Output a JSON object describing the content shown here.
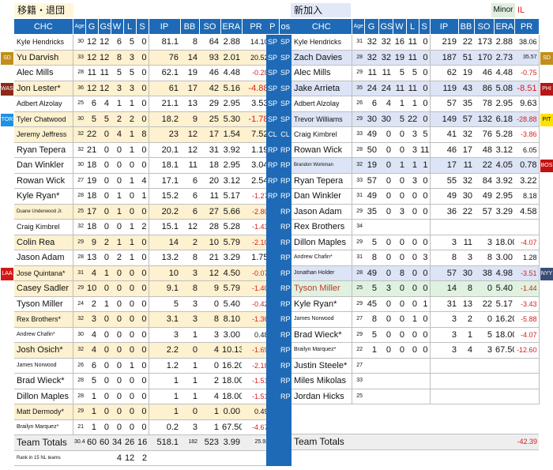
{
  "header": {
    "left_label": "移籍・退団",
    "right_label": "新加入",
    "minor_label": "Minor",
    "il_label": "IL"
  },
  "columns_left": [
    "CHC",
    "Age",
    "G",
    "GS",
    "W",
    "L",
    "S",
    "IP",
    "BB",
    "SO",
    "ERA",
    "PR"
  ],
  "columns_mid": [
    "P",
    "os"
  ],
  "columns_right": [
    "CHC",
    "Age",
    "G",
    "GS",
    "W",
    "L",
    "S",
    "IP",
    "BB",
    "SO",
    "ERA",
    "PR"
  ],
  "side_badges": {
    "left": [
      {
        "row": 1,
        "label": "SD",
        "color": "#c28f1c"
      },
      {
        "row": 3,
        "label": "WAS",
        "color": "#8b2a1a"
      },
      {
        "row": 5,
        "label": "TOR",
        "color": "#1e90e6"
      },
      {
        "row": 15,
        "label": "LAA",
        "color": "#d31818"
      }
    ],
    "right": [
      {
        "row": 1,
        "label": "SD",
        "color": "#c28f1c"
      },
      {
        "row": 3,
        "label": "PHI",
        "color": "#b31818"
      },
      {
        "row": 5,
        "label": "PIT",
        "color": "#ffe000",
        "text": "#000"
      },
      {
        "row": 8,
        "label": "BOS",
        "color": "#c31010"
      },
      {
        "row": 15,
        "label": "NYY",
        "color": "#3b4d77"
      }
    ]
  },
  "left_rows": [
    {
      "name": "Kyle Hendricks",
      "age": "30",
      "g": "12",
      "gs": "12",
      "w": "6",
      "l": "5",
      "s": "0",
      "ip": "81.1",
      "bb": "8",
      "so": "64",
      "era": "2.88",
      "pr": "14.10",
      "bg": "#ffffff",
      "fs": "sm",
      "prs": "sm"
    },
    {
      "name": "Yu Darvish",
      "age": "33",
      "g": "12",
      "gs": "12",
      "w": "8",
      "l": "3",
      "s": "0",
      "ip": "76",
      "bb": "14",
      "so": "93",
      "era": "2.01",
      "pr": "20.52",
      "bg": "#fdf1d0",
      "fs": "",
      "prs": "sm"
    },
    {
      "name": "Alec Mills",
      "age": "28",
      "g": "11",
      "gs": "11",
      "w": "5",
      "l": "5",
      "s": "0",
      "ip": "62.1",
      "bb": "19",
      "so": "46",
      "era": "4.48",
      "pr": "-0.28",
      "bg": "#ffffff",
      "fs": "",
      "prs": "sm",
      "neg": true
    },
    {
      "name": "Jon Lester*",
      "age": "36",
      "g": "12",
      "gs": "12",
      "w": "3",
      "l": "3",
      "s": "0",
      "ip": "61",
      "bb": "17",
      "so": "42",
      "era": "5.16",
      "pr": "-4.88",
      "bg": "#fdf1d0",
      "fs": "",
      "prs": "",
      "neg": true
    },
    {
      "name": "Adbert Alzolay",
      "age": "25",
      "g": "6",
      "gs": "4",
      "w": "1",
      "l": "1",
      "s": "0",
      "ip": "21.1",
      "bb": "13",
      "so": "29",
      "era": "2.95",
      "pr": "3.53",
      "bg": "#ffffff",
      "fs": "sm",
      "prs": ""
    },
    {
      "name": "Tyler Chatwood",
      "age": "30",
      "g": "5",
      "gs": "5",
      "w": "2",
      "l": "2",
      "s": "0",
      "ip": "18.2",
      "bb": "9",
      "so": "25",
      "era": "5.30",
      "pr": "-1.78",
      "bg": "#fdf1d0",
      "fs": "sm",
      "prs": "",
      "neg": true
    },
    {
      "name": "Jeremy Jeffress",
      "age": "32",
      "g": "22",
      "gs": "0",
      "w": "4",
      "l": "1",
      "s": "8",
      "ip": "23",
      "bb": "12",
      "so": "17",
      "era": "1.54",
      "pr": "7.52",
      "bg": "#fdf1d0",
      "fs": "sm",
      "prs": ""
    },
    {
      "name": "Ryan Tepera",
      "age": "32",
      "g": "21",
      "gs": "0",
      "w": "0",
      "l": "1",
      "s": "0",
      "ip": "20.1",
      "bb": "12",
      "so": "31",
      "era": "3.92",
      "pr": "1.19",
      "bg": "#ffffff",
      "fs": "",
      "prs": ""
    },
    {
      "name": "Dan Winkler",
      "age": "30",
      "g": "18",
      "gs": "0",
      "w": "0",
      "l": "0",
      "s": "0",
      "ip": "18.1",
      "bb": "11",
      "so": "18",
      "era": "2.95",
      "pr": "3.04",
      "bg": "#ffffff",
      "fs": "",
      "prs": ""
    },
    {
      "name": "Rowan Wick",
      "age": "27",
      "g": "19",
      "gs": "0",
      "w": "0",
      "l": "1",
      "s": "4",
      "ip": "17.1",
      "bb": "6",
      "so": "20",
      "era": "3.12",
      "pr": "2.54",
      "bg": "#ffffff",
      "fs": "",
      "prs": ""
    },
    {
      "name": "Kyle Ryan*",
      "age": "28",
      "g": "18",
      "gs": "0",
      "w": "1",
      "l": "0",
      "s": "1",
      "ip": "15.2",
      "bb": "6",
      "so": "11",
      "era": "5.17",
      "pr": "-1.27",
      "bg": "#ffffff",
      "fs": "",
      "prs": "sm",
      "neg": true
    },
    {
      "name": "Duane Underwood Jr.",
      "age": "25",
      "g": "17",
      "gs": "0",
      "w": "1",
      "l": "0",
      "s": "0",
      "ip": "20.2",
      "bb": "6",
      "so": "27",
      "era": "5.66",
      "pr": "-2.80",
      "bg": "#fdf1d0",
      "fs": "xxs",
      "prs": "sm",
      "neg": true
    },
    {
      "name": "Craig Kimbrel",
      "age": "32",
      "g": "18",
      "gs": "0",
      "w": "0",
      "l": "1",
      "s": "2",
      "ip": "15.1",
      "bb": "12",
      "so": "28",
      "era": "5.28",
      "pr": "-1.43",
      "bg": "#ffffff",
      "fs": "sm",
      "prs": "sm",
      "neg": true
    },
    {
      "name": "Colin Rea",
      "age": "29",
      "g": "9",
      "gs": "2",
      "w": "1",
      "l": "1",
      "s": "0",
      "ip": "14",
      "bb": "2",
      "so": "10",
      "era": "5.79",
      "pr": "-2.10",
      "bg": "#fdf1d0",
      "fs": "",
      "prs": "sm",
      "neg": true
    },
    {
      "name": "Jason Adam",
      "age": "28",
      "g": "13",
      "gs": "0",
      "w": "2",
      "l": "1",
      "s": "0",
      "ip": "13.2",
      "bb": "8",
      "so": "21",
      "era": "3.29",
      "pr": "1.75",
      "bg": "#ffffff",
      "fs": "",
      "prs": ""
    },
    {
      "name": "Jose Quintana*",
      "age": "31",
      "g": "4",
      "gs": "1",
      "w": "0",
      "l": "0",
      "s": "0",
      "ip": "10",
      "bb": "3",
      "so": "12",
      "era": "4.50",
      "pr": "-0.07",
      "bg": "#fdf1d0",
      "fs": "sm",
      "prs": "sm",
      "neg": true
    },
    {
      "name": "Casey Sadler",
      "age": "29",
      "g": "10",
      "gs": "0",
      "w": "0",
      "l": "0",
      "s": "0",
      "ip": "9.1",
      "bb": "8",
      "so": "9",
      "era": "5.79",
      "pr": "-1.40",
      "bg": "#fdf1d0",
      "fs": "",
      "prs": "sm",
      "neg": true
    },
    {
      "name": "Tyson Miller",
      "age": "24",
      "g": "2",
      "gs": "1",
      "w": "0",
      "l": "0",
      "s": "0",
      "ip": "5",
      "bb": "3",
      "so": "0",
      "era": "5.40",
      "pr": "-0.42",
      "bg": "#ffffff",
      "fs": "",
      "prs": "sm",
      "neg": true
    },
    {
      "name": "Rex Brothers*",
      "age": "32",
      "g": "3",
      "gs": "0",
      "w": "0",
      "l": "0",
      "s": "0",
      "ip": "3.1",
      "bb": "3",
      "so": "8",
      "era": "8.10",
      "pr": "-1.36",
      "bg": "#fdf1d0",
      "fs": "sm",
      "prs": "sm",
      "neg": true
    },
    {
      "name": "Andrew Chafin*",
      "age": "30",
      "g": "4",
      "gs": "0",
      "w": "0",
      "l": "0",
      "s": "0",
      "ip": "3",
      "bb": "1",
      "so": "3",
      "era": "3.00",
      "pr": "0.48",
      "bg": "#ffffff",
      "fs": "xs",
      "prs": "sm"
    },
    {
      "name": "Josh Osich*",
      "age": "32",
      "g": "4",
      "gs": "0",
      "w": "0",
      "l": "0",
      "s": "0",
      "ip": "2.2",
      "bb": "0",
      "so": "4",
      "era": "10.13",
      "pr": "-1.69",
      "bg": "#fdf1d0",
      "fs": "",
      "prs": "sm",
      "neg": true
    },
    {
      "name": "James Norwood",
      "age": "26",
      "g": "6",
      "gs": "0",
      "w": "0",
      "l": "1",
      "s": "0",
      "ip": "1.2",
      "bb": "1",
      "so": "0",
      "era": "16.20",
      "pr": "-2.18",
      "bg": "#ffffff",
      "fs": "xs",
      "prs": "sm",
      "neg": true
    },
    {
      "name": "Brad Wieck*",
      "age": "28",
      "g": "5",
      "gs": "0",
      "w": "0",
      "l": "0",
      "s": "0",
      "ip": "1",
      "bb": "1",
      "so": "2",
      "era": "18.00",
      "pr": "-1.51",
      "bg": "#ffffff",
      "fs": "",
      "prs": "sm",
      "neg": true
    },
    {
      "name": "Dillon Maples",
      "age": "28",
      "g": "1",
      "gs": "0",
      "w": "0",
      "l": "0",
      "s": "0",
      "ip": "1",
      "bb": "1",
      "so": "4",
      "era": "18.00",
      "pr": "-1.51",
      "bg": "#ffffff",
      "fs": "",
      "prs": "sm",
      "neg": true
    },
    {
      "name": "Matt Dermody*",
      "age": "29",
      "g": "1",
      "gs": "0",
      "w": "0",
      "l": "0",
      "s": "0",
      "ip": "1",
      "bb": "0",
      "so": "1",
      "era": "0.00",
      "pr": "0.49",
      "bg": "#fdf1d0",
      "fs": "sm",
      "prs": "sm"
    },
    {
      "name": "Brailyn Marquez*",
      "age": "21",
      "g": "1",
      "gs": "0",
      "w": "0",
      "l": "0",
      "s": "0",
      "ip": "0.2",
      "bb": "3",
      "so": "1",
      "era": "67.50",
      "pr": "-4.67",
      "bg": "#ffffff",
      "fs": "xs",
      "prs": "sm",
      "neg": true
    }
  ],
  "left_total": {
    "name": "Team Totals",
    "age": "30.4",
    "g": "60",
    "gs": "60",
    "w": "34",
    "l": "26",
    "s": "16",
    "ip": "518.1",
    "bb": "182",
    "so": "523",
    "era": "3.99",
    "pr": "25.92"
  },
  "left_rank": {
    "name": "Rank in 15 NL teams",
    "w": "4",
    "l": "12",
    "s": "2"
  },
  "mid_rows": [
    [
      "SP",
      "SP"
    ],
    [
      "SP",
      "SP"
    ],
    [
      "SP",
      "SP"
    ],
    [
      "SP",
      "SP"
    ],
    [
      "SP",
      "SP"
    ],
    [
      "SP",
      "SP"
    ],
    [
      "CL",
      "CL"
    ],
    [
      "RP",
      "RP"
    ],
    [
      "RP",
      "RP"
    ],
    [
      "RP",
      "RP"
    ],
    [
      "RP",
      "RP"
    ],
    [
      "",
      "RP"
    ],
    [
      "",
      "RP"
    ],
    [
      "",
      "RP"
    ],
    [
      "",
      "RP"
    ],
    [
      "",
      "RP"
    ],
    [
      "",
      "RP"
    ],
    [
      "",
      "RP"
    ],
    [
      "",
      "RP"
    ],
    [
      "",
      "RP"
    ],
    [
      "",
      "RP"
    ],
    [
      "",
      "RP"
    ],
    [
      "",
      "RP"
    ],
    [
      "",
      "RP"
    ],
    [
      "",
      ""
    ],
    [
      "",
      ""
    ],
    [
      "",
      ""
    ],
    [
      "",
      ""
    ]
  ],
  "right_rows": [
    {
      "name": "Kyle Hendricks",
      "age": "31",
      "g": "32",
      "gs": "32",
      "w": "16",
      "l": "11",
      "s": "0",
      "ip": "219",
      "bb": "22",
      "so": "173",
      "era": "2.88",
      "pr": "38.06",
      "bg": "#ffffff",
      "fs": "sm",
      "prs": "sm"
    },
    {
      "name": "Zach Davies",
      "age": "28",
      "g": "32",
      "gs": "32",
      "w": "19",
      "l": "11",
      "s": "0",
      "ip": "187",
      "bb": "51",
      "so": "170",
      "era": "2.73",
      "pr": "35.57",
      "bg": "#dde4f6",
      "fs": "",
      "prs": "xs"
    },
    {
      "name": "Alec Mills",
      "age": "29",
      "g": "11",
      "gs": "11",
      "w": "5",
      "l": "5",
      "s": "0",
      "ip": "62",
      "bb": "19",
      "so": "46",
      "era": "4.48",
      "pr": "-0.75",
      "bg": "#ffffff",
      "fs": "",
      "prs": "sm",
      "neg": true
    },
    {
      "name": "Jake Arrieta",
      "age": "35",
      "g": "24",
      "gs": "24",
      "w": "11",
      "l": "11",
      "s": "0",
      "ip": "119",
      "bb": "43",
      "so": "86",
      "era": "5.08",
      "pr": "-8.51",
      "bg": "#dde4f6",
      "fs": "",
      "prs": "",
      "neg": true
    },
    {
      "name": "Adbert Alzolay",
      "age": "26",
      "g": "6",
      "gs": "4",
      "w": "1",
      "l": "1",
      "s": "0",
      "ip": "57",
      "bb": "35",
      "so": "78",
      "era": "2.95",
      "pr": "9.63",
      "bg": "#ffffff",
      "fs": "sm",
      "prs": ""
    },
    {
      "name": "Trevor Williams",
      "age": "29",
      "g": "30",
      "gs": "30",
      "w": "5",
      "l": "22",
      "s": "0",
      "ip": "149",
      "bb": "57",
      "so": "132",
      "era": "6.18",
      "pr": "-28.88",
      "bg": "#dde4f6",
      "fs": "sm",
      "prs": "sm",
      "neg": true
    },
    {
      "name": "Craig Kimbrel",
      "age": "33",
      "g": "49",
      "gs": "0",
      "w": "0",
      "l": "3",
      "s": "5",
      "ip": "41",
      "bb": "32",
      "so": "76",
      "era": "5.28",
      "pr": "-3.86",
      "bg": "#ffffff",
      "fs": "sm",
      "prs": "sm",
      "neg": true
    },
    {
      "name": "Rowan Wick",
      "age": "28",
      "g": "50",
      "gs": "0",
      "w": "0",
      "l": "3",
      "s": "11",
      "ip": "46",
      "bb": "17",
      "so": "48",
      "era": "3.12",
      "pr": "6.05",
      "bg": "#ffffff",
      "fs": "",
      "prs": "sm"
    },
    {
      "name": "Brandon Workman",
      "age": "32",
      "g": "19",
      "gs": "0",
      "w": "1",
      "l": "1",
      "s": "1",
      "ip": "17",
      "bb": "11",
      "so": "22",
      "era": "4.05",
      "pr": "0.78",
      "bg": "#dde4f6",
      "fs": "xxs",
      "prs": ""
    },
    {
      "name": "Ryan Tepera",
      "age": "33",
      "g": "57",
      "gs": "0",
      "w": "0",
      "l": "3",
      "s": "0",
      "ip": "55",
      "bb": "32",
      "so": "84",
      "era": "3.92",
      "pr": "3.22",
      "bg": "#ffffff",
      "fs": "",
      "prs": ""
    },
    {
      "name": "Dan Winkler",
      "age": "31",
      "g": "49",
      "gs": "0",
      "w": "0",
      "l": "0",
      "s": "0",
      "ip": "49",
      "bb": "30",
      "so": "49",
      "era": "2.95",
      "pr": "8.18",
      "bg": "#ffffff",
      "fs": "",
      "prs": "sm"
    },
    {
      "name": "Jason Adam",
      "age": "29",
      "g": "35",
      "gs": "0",
      "w": "3",
      "l": "0",
      "s": "0",
      "ip": "36",
      "bb": "22",
      "so": "57",
      "era": "3.29",
      "pr": "4.58",
      "bg": "#ffffff",
      "fs": "",
      "prs": ""
    },
    {
      "name": "Rex Brothers",
      "age": "34",
      "g": "",
      "gs": "",
      "w": "",
      "l": "",
      "s": "",
      "ip": "",
      "bb": "",
      "so": "",
      "era": "",
      "pr": "",
      "bg": "#ffffff",
      "fs": "",
      "prs": ""
    },
    {
      "name": "Dillon Maples",
      "age": "29",
      "g": "5",
      "gs": "0",
      "w": "0",
      "l": "0",
      "s": "0",
      "ip": "3",
      "bb": "11",
      "so": "3",
      "era": "18.00",
      "pr": "-4.07",
      "bg": "#ffffff",
      "fs": "",
      "prs": "sm",
      "neg": true
    },
    {
      "name": "Andrew Chafin*",
      "age": "31",
      "g": "8",
      "gs": "0",
      "w": "0",
      "l": "0",
      "s": "3",
      "ip": "8",
      "bb": "3",
      "so": "8",
      "era": "3.00",
      "pr": "1.28",
      "bg": "#ffffff",
      "fs": "xs",
      "prs": "sm"
    },
    {
      "name": "Jonathan Holder",
      "age": "28",
      "g": "49",
      "gs": "0",
      "w": "8",
      "l": "0",
      "s": "0",
      "ip": "57",
      "bb": "30",
      "so": "38",
      "era": "4.98",
      "pr": "-3.51",
      "bg": "#dde4f6",
      "fs": "xs",
      "prs": "sm",
      "neg": true
    },
    {
      "name": "Tyson Miller",
      "age": "25",
      "g": "5",
      "gs": "3",
      "w": "0",
      "l": "0",
      "s": "0",
      "ip": "14",
      "bb": "8",
      "so": "0",
      "era": "5.40",
      "pr": "-1.44",
      "bg": "#dff2e0",
      "fs": "",
      "prs": "sm",
      "neg": true,
      "namecolor": "#c0392b"
    },
    {
      "name": "Kyle Ryan*",
      "age": "29",
      "g": "45",
      "gs": "0",
      "w": "0",
      "l": "0",
      "s": "1",
      "ip": "31",
      "bb": "13",
      "so": "22",
      "era": "5.17",
      "pr": "-3.43",
      "bg": "#ffffff",
      "fs": "",
      "prs": "sm",
      "neg": true
    },
    {
      "name": "James Norwood",
      "age": "27",
      "g": "8",
      "gs": "0",
      "w": "0",
      "l": "1",
      "s": "0",
      "ip": "3",
      "bb": "2",
      "so": "0",
      "era": "16.20",
      "pr": "-5.88",
      "bg": "#ffffff",
      "fs": "xs",
      "prs": "sm",
      "neg": true
    },
    {
      "name": "Brad Wieck*",
      "age": "29",
      "g": "5",
      "gs": "0",
      "w": "0",
      "l": "0",
      "s": "0",
      "ip": "3",
      "bb": "1",
      "so": "5",
      "era": "18.00",
      "pr": "-4.07",
      "bg": "#ffffff",
      "fs": "",
      "prs": "sm",
      "neg": true
    },
    {
      "name": "Brailyn Marquez*",
      "age": "22",
      "g": "1",
      "gs": "0",
      "w": "0",
      "l": "0",
      "s": "0",
      "ip": "3",
      "bb": "4",
      "so": "3",
      "era": "67.50",
      "pr": "-12.60",
      "bg": "#ffffff",
      "fs": "xs",
      "prs": "sm",
      "neg": true
    },
    {
      "name": "Justin Steele*",
      "age": "27",
      "g": "",
      "gs": "",
      "w": "",
      "l": "",
      "s": "",
      "ip": "",
      "bb": "",
      "so": "",
      "era": "",
      "pr": "",
      "bg": "#ffffff",
      "fs": "",
      "prs": ""
    },
    {
      "name": "Miles Mikolas",
      "age": "33",
      "g": "",
      "gs": "",
      "w": "",
      "l": "",
      "s": "",
      "ip": "",
      "bb": "",
      "so": "",
      "era": "",
      "pr": "",
      "bg": "#ffffff",
      "fs": "",
      "prs": ""
    },
    {
      "name": "Jordan Hicks",
      "age": "25",
      "g": "",
      "gs": "",
      "w": "",
      "l": "",
      "s": "",
      "ip": "",
      "bb": "",
      "so": "",
      "era": "",
      "pr": "",
      "bg": "#ffffff",
      "fs": "",
      "prs": ""
    }
  ],
  "right_total": {
    "name": "Team Totals",
    "pr": "-42.39"
  }
}
